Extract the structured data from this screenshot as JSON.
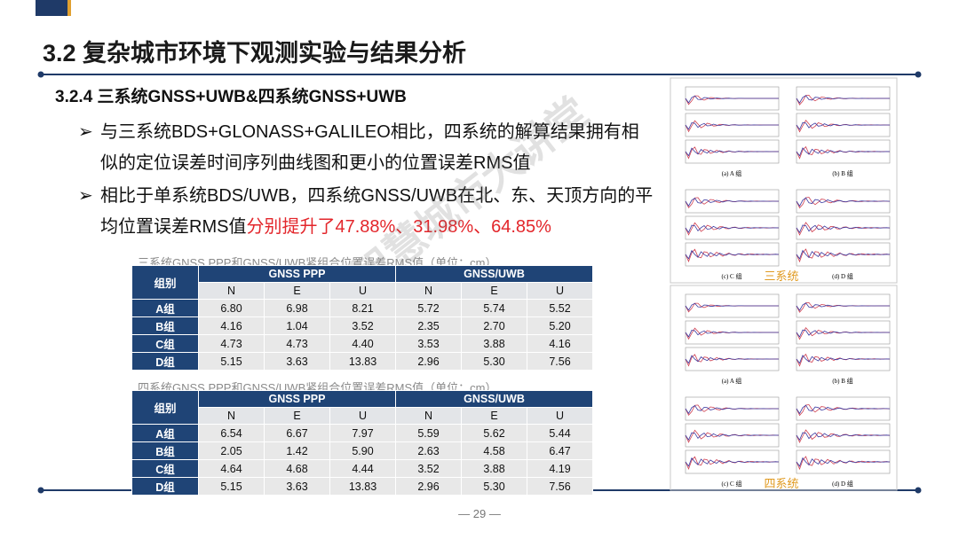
{
  "header": {
    "title": "3.2 复杂城市环境下观测实验与结果分析",
    "page_number": "29"
  },
  "section": {
    "title": "3.2.4 三系统GNSS+UWB&四系统GNSS+UWB"
  },
  "bullets": [
    {
      "text": "与三系统BDS+GLONASS+GALILEO相比，四系统的解算结果拥有相似的定位误差时间序列曲线图和更小的位置误差RMS值"
    },
    {
      "text": "相比于单系统BDS/UWB，四系统GNSS/UWB在北、东、天顶方向的平均位置误差RMS值",
      "highlight": "分别提升了47.88%、31.98%、64.85%"
    }
  ],
  "tables": [
    {
      "caption": "三系统GNSS PPP和GNSS/UWB紧组合位置误差RMS值（单位：cm）",
      "group_header": "组别",
      "blocks": [
        "GNSS PPP",
        "GNSS/UWB"
      ],
      "columns": [
        "N",
        "E",
        "U",
        "N",
        "E",
        "U"
      ],
      "rows": [
        [
          "A组",
          "6.80",
          "6.98",
          "8.21",
          "5.72",
          "5.74",
          "5.52"
        ],
        [
          "B组",
          "4.16",
          "1.04",
          "3.52",
          "2.35",
          "2.70",
          "5.20"
        ],
        [
          "C组",
          "4.73",
          "4.73",
          "4.40",
          "3.53",
          "3.88",
          "4.16"
        ],
        [
          "D组",
          "5.15",
          "3.63",
          "13.83",
          "2.96",
          "5.30",
          "7.56"
        ]
      ]
    },
    {
      "caption": "四系统GNSS PPP和GNSS/UWB紧组合位置误差RMS值（单位：cm）",
      "group_header": "组别",
      "blocks": [
        "GNSS PPP",
        "GNSS/UWB"
      ],
      "columns": [
        "N",
        "E",
        "U",
        "N",
        "E",
        "U"
      ],
      "rows": [
        [
          "A组",
          "6.54",
          "6.67",
          "7.97",
          "5.59",
          "5.62",
          "5.44"
        ],
        [
          "B组",
          "2.05",
          "1.42",
          "5.90",
          "2.63",
          "4.58",
          "6.47"
        ],
        [
          "C组",
          "4.64",
          "4.68",
          "4.44",
          "3.52",
          "3.88",
          "4.19"
        ],
        [
          "D组",
          "5.15",
          "3.63",
          "13.83",
          "2.96",
          "5.30",
          "7.56"
        ]
      ]
    }
  ],
  "figures": [
    {
      "label": "三系统",
      "panels": [
        "(a) A 组",
        "(b) B 组",
        "(c) C 组",
        "(d) D 组"
      ]
    },
    {
      "label": "四系统",
      "panels": [
        "(a) A 组",
        "(b) B 组",
        "(c) C 组",
        "(d) D 组"
      ]
    }
  ],
  "watermark": "智慧城市大讲堂"
}
